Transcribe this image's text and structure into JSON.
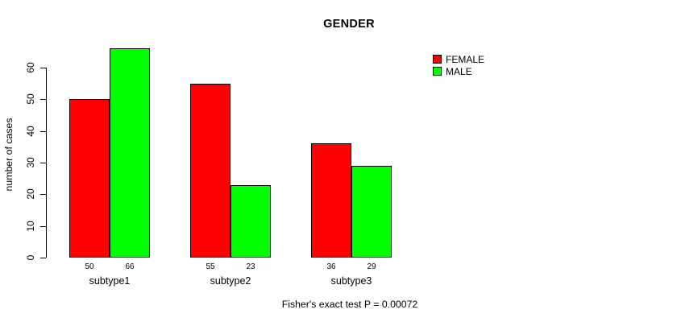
{
  "title": "GENDER",
  "ylabel": "number of cases",
  "caption": "Fisher's exact test P = 0.00072",
  "colors": {
    "female": "#FF0000",
    "male": "#00FF00",
    "axis": "#000000",
    "background": "#FFFFFF"
  },
  "legend": {
    "position": "right",
    "items": [
      {
        "label": "FEMALE",
        "color": "#FF0000"
      },
      {
        "label": "MALE",
        "color": "#00FF00"
      }
    ]
  },
  "chart_data": {
    "type": "bar",
    "title": "GENDER",
    "subtitle": "Fisher's exact test P = 0.00072",
    "xlabel": "",
    "ylabel": "number of cases",
    "categories": [
      "subtype1",
      "subtype2",
      "subtype3"
    ],
    "series": [
      {
        "name": "FEMALE",
        "color": "#FF0000",
        "values": [
          50,
          55,
          36
        ]
      },
      {
        "name": "MALE",
        "color": "#00FF00",
        "values": [
          66,
          23,
          29
        ]
      }
    ],
    "value_labels": [
      [
        "50",
        "66"
      ],
      [
        "55",
        "23"
      ],
      [
        "36",
        "29"
      ]
    ],
    "yticks": [
      0,
      10,
      20,
      30,
      40,
      50,
      60
    ],
    "ylim": [
      0,
      66
    ],
    "grid": false,
    "legend_position": "right",
    "bar_borders": true
  }
}
